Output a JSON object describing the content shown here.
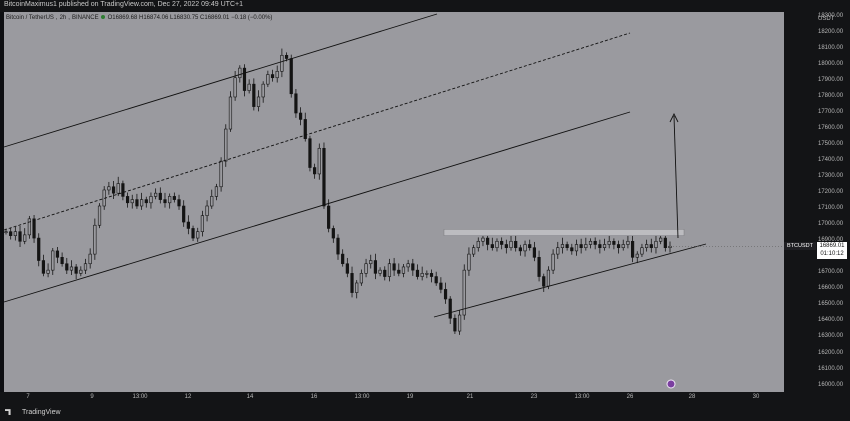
{
  "header": {
    "publisher": "BitcoinMaximus1 published on TradingView.com, Dec 27, 2022 09:49 UTC+1"
  },
  "symbol_bar": {
    "name": "Bitcoin / TetherUS",
    "interval": "2h",
    "exchange": "BINANCE",
    "ohlc": "O16869.68 H16874.06 L16830.75 C16869.01 −0.18 (−0.00%)"
  },
  "price_axis": {
    "currency": "USDT",
    "ticks": [
      "18300.00",
      "18200.00",
      "18100.00",
      "18000.00",
      "17900.00",
      "17800.00",
      "17700.00",
      "17600.00",
      "17500.00",
      "17400.00",
      "17300.00",
      "17200.00",
      "17100.00",
      "17000.00",
      "16900.00",
      "16800.00",
      "16700.00",
      "16600.00",
      "16500.00",
      "16400.00",
      "16300.00",
      "16200.00",
      "16100.00",
      "16000.00"
    ]
  },
  "time_axis": {
    "ticks": [
      "7",
      "9",
      "13:00",
      "12",
      "14",
      "16",
      "13:00",
      "19",
      "21",
      "23",
      "13:00",
      "26",
      "28",
      "30"
    ]
  },
  "price_label": {
    "symbol": "BTCUSDT",
    "price": "16869.01",
    "countdown": "01:10:12"
  },
  "footer": {
    "brand": "TradingView"
  },
  "colors": {
    "plot_bg": "#9a9a9f",
    "panel_bg": "#131416",
    "candle": "#141414",
    "resistance_zone": "#bcbcc0"
  },
  "chart_data": {
    "type": "line",
    "series": [
      {
        "values": [
          16960,
          16935,
          16960,
          16900,
          16940,
          17040,
          16920,
          16780,
          16700,
          16720,
          16840,
          16800,
          16760,
          16720,
          16740,
          16700,
          16720,
          16760,
          16820,
          17000,
          17120,
          17220,
          17240,
          17200,
          17260,
          17180,
          17140,
          17160,
          17120,
          17160,
          17140,
          17180,
          17200,
          17160,
          17140,
          17180,
          17160,
          17120,
          17020,
          16980,
          16920,
          16960,
          17060,
          17120,
          17180,
          17240,
          17400,
          17600,
          17800,
          17920,
          17980,
          17840,
          17880,
          17740,
          17800,
          17880,
          17940,
          17920,
          17960,
          18060,
          18040,
          17820,
          17700,
          17660,
          17540,
          17360,
          17320,
          17480,
          17120,
          16980,
          16920,
          16820,
          16760,
          16700,
          16580,
          16640,
          16700,
          16760,
          16780,
          16700,
          16720,
          16680,
          16760,
          16720,
          16700,
          16740,
          16760,
          16720,
          16680,
          16700,
          16700,
          16680,
          16640,
          16600,
          16540,
          16420,
          16340,
          16440,
          16720,
          16820,
          16860,
          16900,
          16920,
          16880,
          16860,
          16900,
          16880,
          16860,
          16900,
          16860,
          16840,
          16880,
          16860,
          16800,
          16680,
          16620,
          16720,
          16820,
          16860,
          16880,
          16860,
          16840,
          16880,
          16860,
          16880,
          16900,
          16880,
          16860,
          16880,
          16900,
          16880,
          16860,
          16880,
          16900,
          16800,
          16820,
          16860,
          16880,
          16860,
          16900,
          16920,
          16860,
          16869
        ]
      }
    ],
    "ylim": [
      15960,
      18330
    ],
    "grid": false,
    "annotations": [
      "ascending parallel channel with dashed midline",
      "horizontal resistance zone near 16950",
      "ascending support line under consolidation",
      "upward projection arrow to about 17750"
    ]
  }
}
